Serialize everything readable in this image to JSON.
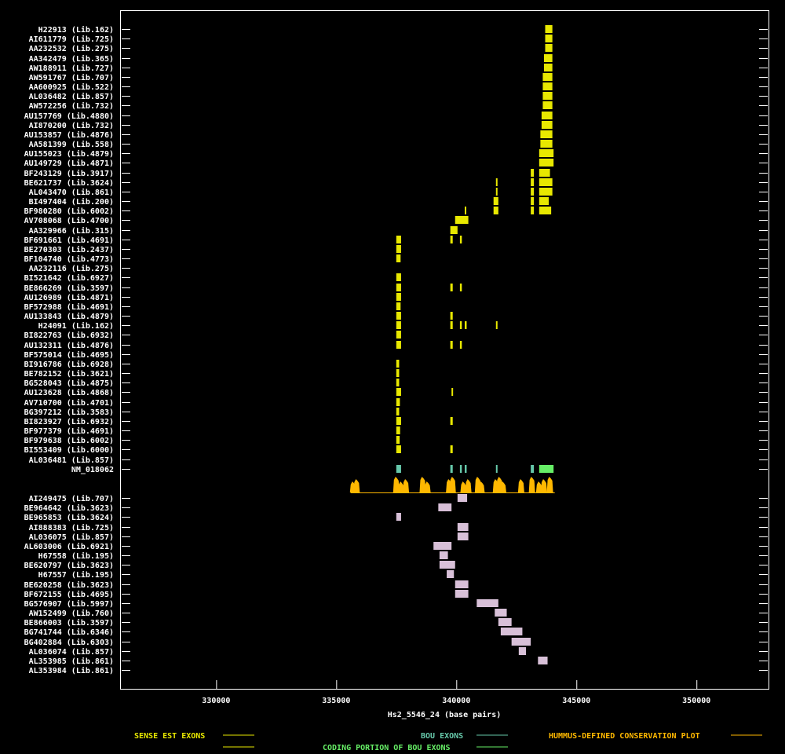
{
  "chart_data": {
    "type": "bar",
    "xlabel": "Hs2_5546_24 (base pairs)",
    "xlim": [
      326000,
      353000
    ],
    "xticks": [
      330000,
      335000,
      340000,
      345000,
      350000
    ],
    "colors": {
      "sense": "#e8e800",
      "bou": "#66c8aa",
      "bou_coding": "#66ee66",
      "hummus": "#ffb800",
      "antisense": "#d8c0d8"
    },
    "legend": {
      "sense": "SENSE EST EXONS",
      "bou": "BOU EXONS",
      "coding": "CODING PORTION OF BOU EXONS",
      "hummus": "HUMMUS-DEFINED CONSERVATION PLOT"
    },
    "upper_labels": [
      "H22913 (Lib.162)",
      "AI611779 (Lib.725)",
      "AA232532 (Lib.275)",
      "AA342479 (Lib.365)",
      "AW188911 (Lib.727)",
      "AW591767 (Lib.707)",
      "AA600925 (Lib.522)",
      "AL036482 (Lib.857)",
      "AW572256 (Lib.732)",
      "AU157769 (Lib.4880)",
      "AI870200 (Lib.732)",
      "AU153857 (Lib.4876)",
      "AA581399 (Lib.558)",
      "AU155023 (Lib.4879)",
      "AU149729 (Lib.4871)",
      "BF243129 (Lib.3917)",
      "BE621737 (Lib.3624)",
      "AL043470 (Lib.861)",
      "BI497404 (Lib.200)",
      "BF980280 (Lib.6002)",
      "AV708068 (Lib.4700)",
      "AA329966 (Lib.315)",
      "BF691661 (Lib.4691)",
      "BE270303 (Lib.2437)",
      "BF104740 (Lib.4773)",
      "AA232116 (Lib.275)",
      "BI521642 (Lib.6927)",
      "BE866269 (Lib.3597)",
      "AU126989 (Lib.4871)",
      "BF572988 (Lib.4691)",
      "AU133843 (Lib.4879)",
      "H24091 (Lib.162)",
      "BI822763 (Lib.6932)",
      "AU132311 (Lib.4876)",
      "BF575014 (Lib.4695)",
      "BI916786 (Lib.6928)",
      "BE782152 (Lib.3621)",
      "BG528043 (Lib.4875)",
      "AU123628 (Lib.4868)",
      "AV710700 (Lib.4701)",
      "BG397212 (Lib.3583)",
      "BI823927 (Lib.6932)",
      "BF977379 (Lib.4691)",
      "BF979638 (Lib.6002)",
      "BI553409 (Lib.6000)",
      "AL036481 (Lib.857)",
      "NM_018062"
    ],
    "lower_labels": [
      "AI249475 (Lib.707)",
      "BE964642 (Lib.3623)",
      "BE965853 (Lib.3624)",
      "AI888383 (Lib.725)",
      "AL036075 (Lib.857)",
      "AL603006 (Lib.6921)",
      "H67558 (Lib.195)",
      "BE620797 (Lib.3623)",
      "H67557 (Lib.195)",
      "BE620258 (Lib.3623)",
      "BF672155 (Lib.4695)",
      "BG576907 (Lib.5997)",
      "AW152499 (Lib.760)",
      "BE866003 (Lib.3597)",
      "BG741744 (Lib.6346)",
      "BG402884 (Lib.6303)",
      "AL036074 (Lib.857)",
      "AL353985 (Lib.861)",
      "AL353984 (Lib.861)"
    ],
    "upper_exons": [
      [
        [
          343700,
          344000
        ]
      ],
      [
        [
          343700,
          344000
        ]
      ],
      [
        [
          343700,
          344000
        ]
      ],
      [
        [
          343650,
          344000
        ]
      ],
      [
        [
          343650,
          344000
        ]
      ],
      [
        [
          343600,
          344000
        ]
      ],
      [
        [
          343600,
          344000
        ]
      ],
      [
        [
          343600,
          344000
        ]
      ],
      [
        [
          343600,
          344000
        ]
      ],
      [
        [
          343550,
          344000
        ]
      ],
      [
        [
          343550,
          344000
        ]
      ],
      [
        [
          343500,
          344000
        ]
      ],
      [
        [
          343500,
          344000
        ]
      ],
      [
        [
          343450,
          344050
        ]
      ],
      [
        [
          343450,
          344050
        ]
      ],
      [
        [
          343100,
          343230
        ],
        [
          343450,
          343900
        ]
      ],
      [
        [
          341650,
          341700
        ],
        [
          343100,
          343230
        ],
        [
          343450,
          344000
        ]
      ],
      [
        [
          341650,
          341700
        ],
        [
          343100,
          343230
        ],
        [
          343450,
          344000
        ]
      ],
      [
        [
          341550,
          341750
        ],
        [
          343100,
          343230
        ],
        [
          343450,
          343850
        ]
      ],
      [
        [
          340350,
          340400
        ],
        [
          341550,
          341750
        ],
        [
          343100,
          343230
        ],
        [
          343450,
          343950
        ]
      ],
      [
        [
          339950,
          340500
        ]
      ],
      [
        [
          339750,
          340050
        ]
      ],
      [
        [
          337500,
          337700
        ],
        [
          339750,
          339850
        ],
        [
          340150,
          340230
        ]
      ],
      [
        [
          337500,
          337700
        ]
      ],
      [
        [
          337500,
          337680
        ]
      ],
      [],
      [
        [
          337500,
          337700
        ]
      ],
      [
        [
          337500,
          337700
        ],
        [
          339750,
          339850
        ],
        [
          340150,
          340230
        ]
      ],
      [
        [
          337500,
          337700
        ]
      ],
      [
        [
          337500,
          337680
        ]
      ],
      [
        [
          337500,
          337700
        ],
        [
          339750,
          339850
        ]
      ],
      [
        [
          337500,
          337700
        ],
        [
          339750,
          339850
        ],
        [
          340150,
          340230
        ],
        [
          340350,
          340430
        ],
        [
          341650,
          341700
        ]
      ],
      [
        [
          337500,
          337700
        ]
      ],
      [
        [
          337500,
          337700
        ],
        [
          339750,
          339850
        ],
        [
          340150,
          340230
        ]
      ],
      [],
      [
        [
          337500,
          337620
        ]
      ],
      [
        [
          337500,
          337620
        ]
      ],
      [
        [
          337500,
          337620
        ]
      ],
      [
        [
          337500,
          337700
        ],
        [
          339800,
          339850
        ]
      ],
      [
        [
          337500,
          337650
        ]
      ],
      [
        [
          337500,
          337620
        ]
      ],
      [
        [
          337500,
          337700
        ],
        [
          339750,
          339850
        ]
      ],
      [
        [
          337500,
          337660
        ]
      ],
      [
        [
          337500,
          337640
        ]
      ],
      [
        [
          337500,
          337700
        ],
        [
          339750,
          339850
        ]
      ],
      [],
      []
    ],
    "nm_exons": [
      {
        "range": [
          337500,
          337700
        ],
        "coding": false
      },
      {
        "range": [
          339750,
          339850
        ],
        "coding": false
      },
      {
        "range": [
          340150,
          340230
        ],
        "coding": false
      },
      {
        "range": [
          340350,
          340430
        ],
        "coding": false
      },
      {
        "range": [
          341650,
          341700
        ],
        "coding": false
      },
      {
        "range": [
          343100,
          343230
        ],
        "coding": false
      },
      {
        "range": [
          343450,
          344050
        ],
        "coding": true
      }
    ],
    "conservation_peaks": [
      335700,
      335850,
      337500,
      337700,
      337900,
      338600,
      338800,
      339700,
      339850,
      340300,
      340500,
      340900,
      341050,
      341650,
      341800,
      341950,
      342700,
      343150,
      343450,
      343650,
      343900
    ],
    "lower_exons": [
      [
        [
          340050,
          340450
        ]
      ],
      [
        [
          339250,
          339800
        ]
      ],
      [
        [
          337500,
          337700
        ]
      ],
      [
        [
          340050,
          340500
        ]
      ],
      [
        [
          340050,
          340500
        ]
      ],
      [
        [
          339050,
          339800
        ]
      ],
      [
        [
          339300,
          339650
        ]
      ],
      [
        [
          339300,
          339950
        ]
      ],
      [
        [
          339600,
          339900
        ]
      ],
      [
        [
          339950,
          340500
        ]
      ],
      [
        [
          339950,
          340500
        ]
      ],
      [
        [
          340850,
          341750
        ]
      ],
      [
        [
          341600,
          342100
        ]
      ],
      [
        [
          341750,
          342300
        ]
      ],
      [
        [
          341850,
          342750
        ]
      ],
      [
        [
          342300,
          343100
        ]
      ],
      [
        [
          342600,
          342900
        ]
      ],
      [
        [
          343400,
          343800
        ]
      ],
      []
    ]
  }
}
